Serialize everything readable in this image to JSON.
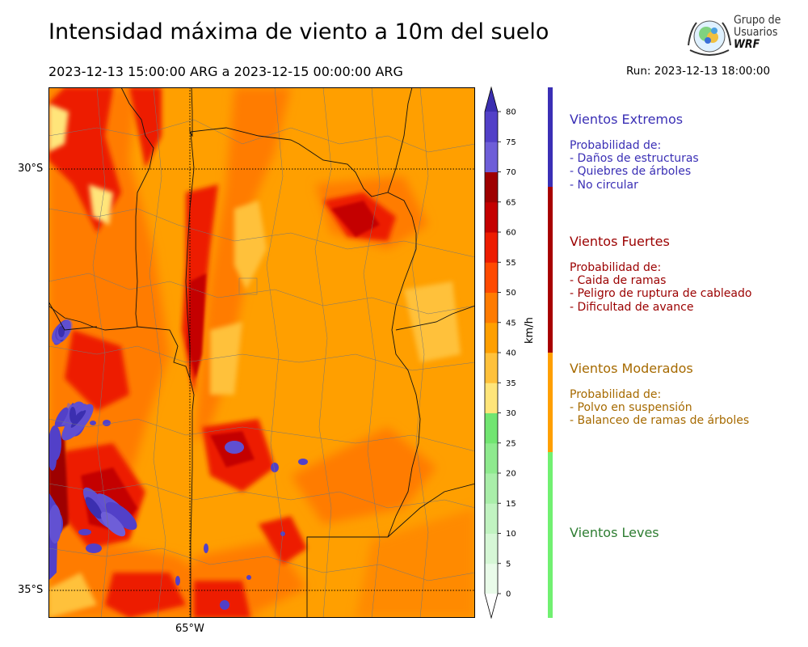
{
  "header": {
    "title": "Intensidad máxima de viento a 10m del suelo",
    "period": "2023-12-13 15:00:00 ARG  a  2023-12-15 00:00:00 ARG",
    "run": "Run: 2023-12-13 18:00:00"
  },
  "logo": {
    "line1": "Grupo de",
    "line2": "Usuarios",
    "line3": "WRF"
  },
  "map": {
    "lat_labels": [
      {
        "text": "30°S",
        "lat": -30
      },
      {
        "text": "35°S",
        "lat": -35
      }
    ],
    "lon_labels": [
      {
        "text": "65°W",
        "lon": -65
      }
    ]
  },
  "colorbar": {
    "unit": "km/h",
    "ticks": [
      "0",
      "5",
      "10",
      "15",
      "20",
      "25",
      "30",
      "35",
      "40",
      "45",
      "50",
      "55",
      "60",
      "65",
      "70",
      "75",
      "80"
    ],
    "colors": [
      "#e9fbe9",
      "#d6f7d6",
      "#c1f3c1",
      "#a9eea9",
      "#8eea8e",
      "#71e571",
      "#ffe57a",
      "#ffc13b",
      "#ff9f00",
      "#ff7b00",
      "#ff4a00",
      "#ed1c00",
      "#c40000",
      "#9e0000",
      "#6e5ed8",
      "#5240c8",
      "#3b2fb0"
    ],
    "extend_colors": {
      "under": "#ffffff",
      "over": "#3b2fb0"
    }
  },
  "categories": [
    {
      "title": "Vientos Extremos",
      "color": "#3a2fb5",
      "lines": [
        " Probabilidad de:",
        " - Daños de estructuras",
        " - Quiebres de árboles",
        " - No circular"
      ]
    },
    {
      "title": "Vientos Fuertes",
      "color": "#9b0000",
      "lines": [
        " Probabilidad de:",
        " - Caida de ramas",
        " - Peligro de ruptura de cableado",
        " - Dificultad de avance"
      ]
    },
    {
      "title": "Vientos Moderados",
      "color": "#a66a00",
      "lines": [
        " Probabilidad de:",
        " - Polvo en suspensión",
        " - Balanceo de ramas de árboles"
      ]
    },
    {
      "title": "Vientos Leves",
      "color": "#2e7d32",
      "lines": []
    }
  ],
  "category_bar": [
    {
      "name": "extremos",
      "color": "#3a2fb5",
      "from": 65,
      "to": 80
    },
    {
      "name": "fuertes",
      "color": "#a80000",
      "from": 40,
      "to": 65
    },
    {
      "name": "moderados",
      "color": "#ff9f00",
      "from": 25,
      "to": 40
    },
    {
      "name": "leves",
      "color": "#71f071",
      "from": 0,
      "to": 25
    }
  ]
}
